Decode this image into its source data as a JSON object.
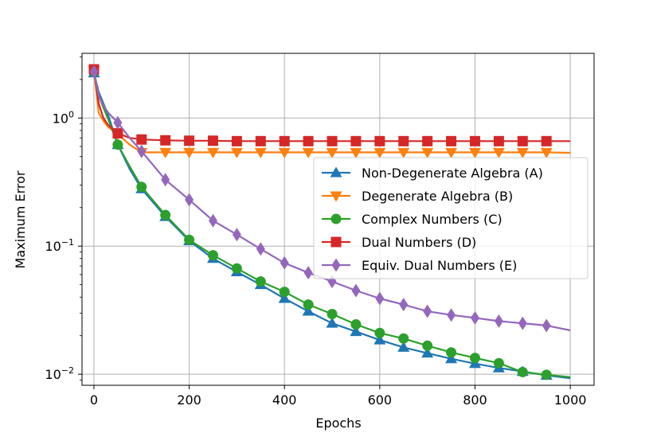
{
  "chart_data": {
    "type": "line",
    "title": "",
    "xlabel": "Epochs",
    "ylabel": "Maximum Error",
    "xlim": [
      -25,
      1050
    ],
    "ylim": [
      0.0082,
      3.2
    ],
    "yscale": "log",
    "grid": true,
    "legend_position": "center-right",
    "x_ticks": [
      0,
      200,
      400,
      600,
      800,
      1000
    ],
    "x_tick_labels": [
      "0",
      "200",
      "400",
      "600",
      "800",
      "1000"
    ],
    "y_ticks": [
      1,
      0.1,
      0.01
    ],
    "y_tick_labels": [
      {
        "base": "10",
        "exp": "0"
      },
      {
        "base": "10",
        "exp": "−1"
      },
      {
        "base": "10",
        "exp": "−2"
      }
    ],
    "series": [
      {
        "name": "Non-Degenerate Algebra (A)",
        "color": "#1f77b4",
        "marker": "triangle-up",
        "x": [
          0,
          10,
          20,
          30,
          50,
          75,
          100,
          150,
          200,
          250,
          300,
          350,
          400,
          450,
          500,
          550,
          600,
          650,
          700,
          750,
          800,
          850,
          900,
          950,
          1000
        ],
        "y": [
          2.25,
          1.6,
          1.3,
          1.05,
          0.62,
          0.4,
          0.28,
          0.17,
          0.11,
          0.08,
          0.063,
          0.05,
          0.039,
          0.031,
          0.025,
          0.0215,
          0.0185,
          0.0162,
          0.0146,
          0.0132,
          0.0121,
          0.0112,
          0.0105,
          0.0098,
          0.0093
        ]
      },
      {
        "name": "Degenerate Algebra (B)",
        "color": "#ff7f0e",
        "marker": "triangle-down",
        "x": [
          0,
          10,
          20,
          30,
          50,
          75,
          100,
          150,
          200,
          250,
          300,
          350,
          400,
          450,
          500,
          550,
          600,
          650,
          700,
          750,
          800,
          850,
          900,
          950,
          1000
        ],
        "y": [
          2.35,
          1.1,
          0.95,
          0.85,
          0.75,
          0.62,
          0.54,
          0.54,
          0.54,
          0.54,
          0.54,
          0.54,
          0.54,
          0.54,
          0.54,
          0.54,
          0.54,
          0.54,
          0.54,
          0.54,
          0.54,
          0.54,
          0.54,
          0.54,
          0.535
        ]
      },
      {
        "name": "Complex Numbers (C)",
        "color": "#2ca02c",
        "marker": "circle",
        "x": [
          0,
          10,
          20,
          30,
          50,
          75,
          100,
          150,
          200,
          250,
          300,
          350,
          400,
          450,
          500,
          550,
          600,
          650,
          700,
          750,
          800,
          850,
          900,
          950,
          1000
        ],
        "y": [
          2.3,
          1.5,
          1.2,
          0.98,
          0.62,
          0.42,
          0.29,
          0.175,
          0.112,
          0.085,
          0.067,
          0.053,
          0.044,
          0.035,
          0.0295,
          0.0245,
          0.021,
          0.019,
          0.0167,
          0.0148,
          0.0134,
          0.0122,
          0.0104,
          0.0099,
          0.0095
        ]
      },
      {
        "name": "Dual Numbers (D)",
        "color": "#d62728",
        "marker": "square",
        "x": [
          0,
          10,
          20,
          30,
          50,
          75,
          100,
          150,
          200,
          250,
          300,
          350,
          400,
          450,
          500,
          550,
          600,
          650,
          700,
          750,
          800,
          850,
          900,
          950,
          1000
        ],
        "y": [
          2.4,
          1.3,
          1.0,
          0.88,
          0.76,
          0.7,
          0.68,
          0.67,
          0.665,
          0.665,
          0.66,
          0.66,
          0.66,
          0.66,
          0.66,
          0.66,
          0.66,
          0.66,
          0.66,
          0.66,
          0.66,
          0.66,
          0.66,
          0.66,
          0.66
        ]
      },
      {
        "name": "Equiv. Dual Numbers (E)",
        "color": "#9467bd",
        "marker": "diamond",
        "x": [
          0,
          10,
          20,
          30,
          50,
          75,
          100,
          150,
          200,
          250,
          300,
          350,
          400,
          450,
          500,
          550,
          600,
          650,
          700,
          750,
          800,
          850,
          900,
          950,
          1000
        ],
        "y": [
          2.3,
          1.5,
          1.25,
          1.1,
          0.92,
          0.7,
          0.55,
          0.33,
          0.23,
          0.158,
          0.123,
          0.095,
          0.074,
          0.062,
          0.053,
          0.045,
          0.039,
          0.035,
          0.031,
          0.029,
          0.0275,
          0.026,
          0.025,
          0.024,
          0.022
        ]
      }
    ]
  }
}
